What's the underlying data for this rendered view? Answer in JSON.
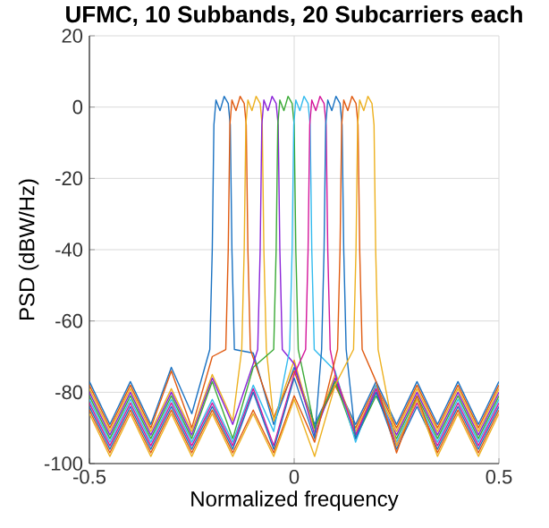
{
  "chart_data": {
    "type": "line",
    "title": "UFMC, 10 Subbands, 20 Subcarriers each",
    "xlabel": "Normalized frequency",
    "ylabel": "PSD (dBW/Hz)",
    "xlim": [
      -0.5,
      0.5
    ],
    "ylim": [
      -100,
      20
    ],
    "xticks": [
      -0.5,
      0,
      0.5
    ],
    "yticks": [
      -100,
      -80,
      -60,
      -40,
      -20,
      0,
      20
    ],
    "grid": true,
    "line_style": "solid",
    "marker": "none",
    "series": [
      {
        "color": "#1a72c2",
        "x": [
          -0.5,
          -0.45,
          -0.4,
          -0.35,
          -0.3,
          -0.25,
          -0.206,
          -0.2,
          -0.196,
          -0.191,
          -0.181,
          -0.171,
          -0.161,
          -0.156,
          -0.152,
          -0.146,
          -0.1,
          -0.05,
          0,
          0.05,
          0.1,
          0.15,
          0.2,
          0.25,
          0.3,
          0.35,
          0.4,
          0.45,
          0.5
        ],
        "values": [
          -77,
          -89,
          -77,
          -89,
          -73,
          -86,
          -68,
          -40,
          -5,
          2,
          -1,
          3,
          1,
          -5,
          -40,
          -68,
          -69,
          -89,
          -73,
          -89,
          -77,
          -89,
          -77,
          -89,
          -77,
          -89,
          -77,
          -89,
          -77
        ]
      },
      {
        "color": "#e05a10",
        "x": [
          -0.5,
          -0.45,
          -0.4,
          -0.35,
          -0.3,
          -0.25,
          -0.2,
          -0.167,
          -0.161,
          -0.157,
          -0.152,
          -0.142,
          -0.132,
          -0.122,
          -0.117,
          -0.113,
          -0.107,
          -0.05,
          0,
          0.05,
          0.1,
          0.15,
          0.2,
          0.25,
          0.3,
          0.35,
          0.4,
          0.45,
          0.5
        ],
        "values": [
          -78,
          -90,
          -78,
          -90,
          -74,
          -90,
          -70,
          -68,
          -40,
          -5,
          2,
          -1,
          3,
          1,
          -5,
          -40,
          -68,
          -87,
          -74,
          -90,
          -78,
          -90,
          -78,
          -90,
          -78,
          -90,
          -78,
          -90,
          -78
        ]
      },
      {
        "color": "#edb120",
        "x": [
          -0.5,
          -0.45,
          -0.4,
          -0.35,
          -0.3,
          -0.25,
          -0.2,
          -0.15,
          -0.128,
          -0.122,
          -0.118,
          -0.113,
          -0.103,
          -0.093,
          -0.083,
          -0.078,
          -0.074,
          -0.068,
          -0.05,
          0,
          0.05,
          0.1,
          0.15,
          0.2,
          0.25,
          0.3,
          0.35,
          0.4,
          0.45,
          0.5
        ],
        "values": [
          -79,
          -91,
          -79,
          -91,
          -79,
          -91,
          -75,
          -88,
          -68,
          -40,
          -5,
          2,
          -1,
          3,
          1,
          -5,
          -40,
          -68,
          -88,
          -71,
          -91,
          -75,
          -91,
          -79,
          -91,
          -79,
          -91,
          -79,
          -91,
          -79
        ]
      },
      {
        "color": "#8a22d8",
        "x": [
          -0.5,
          -0.45,
          -0.4,
          -0.35,
          -0.3,
          -0.25,
          -0.2,
          -0.15,
          -0.1,
          -0.089,
          -0.083,
          -0.079,
          -0.074,
          -0.064,
          -0.054,
          -0.044,
          -0.039,
          -0.035,
          -0.029,
          0,
          0.05,
          0.1,
          0.15,
          0.2,
          0.25,
          0.3,
          0.35,
          0.4,
          0.45,
          0.5
        ],
        "values": [
          -80,
          -92,
          -80,
          -92,
          -80,
          -92,
          -76,
          -89,
          -72,
          -68,
          -40,
          -5,
          2,
          -1,
          3,
          1,
          -5,
          -40,
          -68,
          -72,
          -92,
          -76,
          -92,
          -80,
          -92,
          -80,
          -92,
          -80,
          -92,
          -80
        ]
      },
      {
        "color": "#3aaa35",
        "x": [
          -0.5,
          -0.45,
          -0.4,
          -0.35,
          -0.3,
          -0.25,
          -0.2,
          -0.15,
          -0.1,
          -0.05,
          -0.044,
          -0.04,
          -0.035,
          -0.025,
          -0.015,
          -0.005,
          0,
          0.004,
          0.01,
          0.05,
          0.1,
          0.15,
          0.2,
          0.25,
          0.3,
          0.35,
          0.4,
          0.45,
          0.5
        ],
        "values": [
          -81,
          -93,
          -81,
          -93,
          -81,
          -93,
          -77,
          -93,
          -73,
          -68,
          -40,
          -5,
          2,
          -1,
          3,
          1,
          -5,
          -40,
          -68,
          -90,
          -77,
          -93,
          -81,
          -93,
          -81,
          -93,
          -81,
          -93,
          -81
        ]
      },
      {
        "color": "#33bbee",
        "x": [
          -0.5,
          -0.45,
          -0.4,
          -0.35,
          -0.3,
          -0.25,
          -0.2,
          -0.15,
          -0.1,
          -0.05,
          -0.011,
          -0.005,
          -0.001,
          0.004,
          0.014,
          0.024,
          0.034,
          0.039,
          0.043,
          0.049,
          0.1,
          0.15,
          0.2,
          0.25,
          0.3,
          0.35,
          0.4,
          0.45,
          0.5
        ],
        "values": [
          -82,
          -94,
          -82,
          -94,
          -82,
          -94,
          -82,
          -94,
          -78,
          -91,
          -68,
          -40,
          -5,
          2,
          -1,
          3,
          1,
          -5,
          -40,
          -68,
          -74,
          -94,
          -78,
          -94,
          -82,
          -94,
          -82,
          -94,
          -82
        ]
      },
      {
        "color": "#d4159b",
        "x": [
          -0.5,
          -0.45,
          -0.4,
          -0.35,
          -0.3,
          -0.25,
          -0.2,
          -0.15,
          -0.1,
          -0.05,
          0,
          0.028,
          0.034,
          0.038,
          0.043,
          0.053,
          0.063,
          0.073,
          0.078,
          0.082,
          0.088,
          0.1,
          0.15,
          0.2,
          0.25,
          0.3,
          0.35,
          0.4,
          0.45,
          0.5
        ],
        "values": [
          -83,
          -95,
          -83,
          -95,
          -83,
          -95,
          -83,
          -95,
          -79,
          -95,
          -75,
          -68,
          -40,
          -5,
          2,
          -1,
          3,
          1,
          -5,
          -40,
          -68,
          -75,
          -92,
          -79,
          -95,
          -83,
          -95,
          -83,
          -95,
          -83
        ]
      },
      {
        "color": "#1a72c2",
        "x": [
          -0.5,
          -0.45,
          -0.4,
          -0.35,
          -0.3,
          -0.25,
          -0.2,
          -0.15,
          -0.1,
          -0.05,
          0,
          0.05,
          0.067,
          0.073,
          0.077,
          0.082,
          0.092,
          0.102,
          0.112,
          0.117,
          0.121,
          0.127,
          0.15,
          0.2,
          0.25,
          0.3,
          0.35,
          0.4,
          0.45,
          0.5
        ],
        "values": [
          -84,
          -96,
          -84,
          -96,
          -84,
          -96,
          -84,
          -96,
          -80,
          -96,
          -76,
          -93,
          -68,
          -40,
          -5,
          2,
          -1,
          3,
          1,
          -5,
          -40,
          -68,
          -93,
          -80,
          -96,
          -84,
          -96,
          -84,
          -96,
          -84
        ]
      },
      {
        "color": "#e05a10",
        "x": [
          -0.5,
          -0.45,
          -0.4,
          -0.35,
          -0.3,
          -0.25,
          -0.2,
          -0.15,
          -0.1,
          -0.05,
          0,
          0.05,
          0.106,
          0.112,
          0.116,
          0.121,
          0.131,
          0.141,
          0.151,
          0.156,
          0.16,
          0.166,
          0.2,
          0.25,
          0.3,
          0.35,
          0.4,
          0.45,
          0.5
        ],
        "values": [
          -85,
          -97,
          -85,
          -97,
          -85,
          -97,
          -85,
          -97,
          -85,
          -97,
          -81,
          -94,
          -68,
          -40,
          -5,
          2,
          -1,
          3,
          1,
          -5,
          -40,
          -68,
          -77,
          -97,
          -81,
          -97,
          -85,
          -97,
          -85
        ]
      },
      {
        "color": "#edb120",
        "x": [
          -0.5,
          -0.45,
          -0.4,
          -0.35,
          -0.3,
          -0.25,
          -0.2,
          -0.15,
          -0.1,
          -0.05,
          0,
          0.05,
          0.1,
          0.145,
          0.151,
          0.155,
          0.16,
          0.17,
          0.18,
          0.19,
          0.195,
          0.199,
          0.205,
          0.25,
          0.3,
          0.35,
          0.4,
          0.45,
          0.5
        ],
        "values": [
          -86,
          -98,
          -86,
          -98,
          -86,
          -98,
          -86,
          -98,
          -86,
          -98,
          -82,
          -98,
          -78,
          -68,
          -40,
          -5,
          2,
          -1,
          3,
          1,
          -5,
          -40,
          -68,
          -95,
          -82,
          -98,
          -86,
          -98,
          -86
        ]
      }
    ]
  }
}
